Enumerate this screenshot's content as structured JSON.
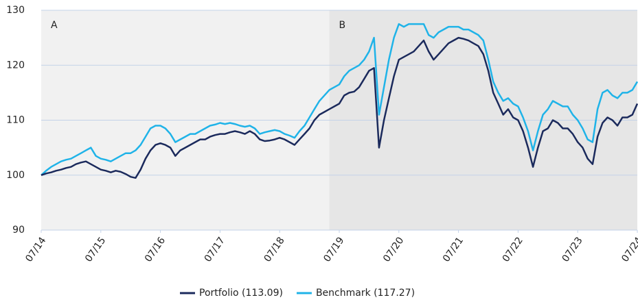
{
  "chart_data": {
    "type": "line",
    "x": [
      "07/14",
      "08/14",
      "09/14",
      "10/14",
      "11/14",
      "12/14",
      "01/15",
      "02/15",
      "03/15",
      "04/15",
      "05/15",
      "06/15",
      "07/15",
      "08/15",
      "09/15",
      "10/15",
      "11/15",
      "12/15",
      "01/16",
      "02/16",
      "03/16",
      "04/16",
      "05/16",
      "06/16",
      "07/16",
      "08/16",
      "09/16",
      "10/16",
      "11/16",
      "12/16",
      "01/17",
      "02/17",
      "03/17",
      "04/17",
      "05/17",
      "06/17",
      "07/17",
      "08/17",
      "09/17",
      "10/17",
      "11/17",
      "12/17",
      "01/18",
      "02/18",
      "03/18",
      "04/18",
      "05/18",
      "06/18",
      "07/18",
      "08/18",
      "09/18",
      "10/18",
      "11/18",
      "12/18",
      "01/19",
      "02/19",
      "03/19",
      "04/19",
      "05/19",
      "06/19",
      "07/19",
      "08/19",
      "09/19",
      "10/19",
      "11/19",
      "12/19",
      "01/20",
      "02/20",
      "03/20",
      "04/20",
      "05/20",
      "06/20",
      "07/20",
      "08/20",
      "09/20",
      "10/20",
      "11/20",
      "12/20",
      "01/21",
      "02/21",
      "03/21",
      "04/21",
      "05/21",
      "06/21",
      "07/21",
      "08/21",
      "09/21",
      "10/21",
      "11/21",
      "12/21",
      "01/22",
      "02/22",
      "03/22",
      "04/22",
      "05/22",
      "06/22",
      "07/22",
      "08/22",
      "09/22",
      "10/22",
      "11/22",
      "12/22",
      "01/23",
      "02/23",
      "03/23",
      "04/23",
      "05/23",
      "06/23",
      "07/23",
      "08/23",
      "09/23",
      "10/23",
      "11/23",
      "12/23",
      "01/24",
      "02/24",
      "03/24",
      "04/24",
      "05/24",
      "06/24",
      "07/24"
    ],
    "series": [
      {
        "name": "Portfolio (113.09)",
        "color": "#1b2a5c",
        "values": [
          100,
          100.3,
          100.5,
          100.8,
          101,
          101.3,
          101.5,
          102,
          102.3,
          102.5,
          102,
          101.5,
          101,
          100.8,
          100.5,
          100.8,
          100.6,
          100.2,
          99.7,
          99.5,
          101,
          103,
          104.5,
          105.5,
          105.8,
          105.5,
          105,
          103.5,
          104.5,
          105,
          105.5,
          106,
          106.5,
          106.5,
          107,
          107.3,
          107.5,
          107.5,
          107.8,
          108,
          107.8,
          107.5,
          108,
          107.5,
          106.5,
          106.2,
          106.3,
          106.5,
          106.8,
          106.5,
          106,
          105.5,
          106.5,
          107.5,
          108.5,
          110,
          111,
          111.5,
          112,
          112.5,
          113,
          114.5,
          115,
          115.2,
          116,
          117.5,
          119,
          119.5,
          105,
          110,
          114,
          118,
          121,
          121.5,
          122,
          122.5,
          123.5,
          124.5,
          122.5,
          121,
          122,
          123,
          124,
          124.5,
          125,
          124.8,
          124.5,
          124,
          123.5,
          122,
          119,
          115,
          113,
          111,
          112,
          110.5,
          110,
          108,
          105,
          101.5,
          105,
          108,
          108.5,
          110,
          109.5,
          108.5,
          108.5,
          107.5,
          106,
          105,
          103,
          102,
          107,
          109.5,
          110.5,
          110,
          109,
          110.5,
          110.5,
          111,
          113
        ]
      },
      {
        "name": "Benchmark (117.27)",
        "color": "#1fb3e8",
        "values": [
          100,
          100.8,
          101.5,
          102,
          102.5,
          102.8,
          103,
          103.5,
          104,
          104.5,
          105,
          103.5,
          103,
          102.8,
          102.5,
          103,
          103.5,
          104,
          104,
          104.5,
          105.5,
          107,
          108.5,
          109,
          109,
          108.5,
          107.5,
          106,
          106.5,
          107,
          107.5,
          107.5,
          108,
          108.5,
          109,
          109.2,
          109.5,
          109.3,
          109.5,
          109.3,
          109,
          108.8,
          109,
          108.5,
          107.5,
          107.8,
          108,
          108.2,
          108,
          107.5,
          107.2,
          106.8,
          108,
          109,
          110.5,
          112,
          113.5,
          114.5,
          115.5,
          116,
          116.5,
          118,
          119,
          119.5,
          120,
          121,
          122.5,
          125,
          111,
          116,
          121,
          125,
          127.5,
          127,
          127.5,
          127.5,
          127.5,
          127.5,
          125.5,
          125,
          126,
          126.5,
          127,
          127,
          127,
          126.5,
          126.5,
          126,
          125.5,
          124.5,
          121,
          117,
          115,
          113.5,
          114,
          113,
          112.5,
          110.5,
          108,
          104.5,
          108,
          111,
          112,
          113.5,
          113,
          112.5,
          112.5,
          111,
          110,
          108.5,
          106.5,
          106,
          112,
          115,
          115.5,
          114.5,
          114,
          115,
          115,
          115.5,
          117
        ]
      }
    ],
    "regions": [
      {
        "label": "A",
        "start": "07/14",
        "end": "05/19",
        "color": "#f1f1f1"
      },
      {
        "label": "B",
        "start": "05/19",
        "end": "07/24",
        "color": "#e6e6e6"
      }
    ],
    "xlim": [
      "07/14",
      "07/24"
    ],
    "xticks": [
      "07/14",
      "07/15",
      "07/16",
      "07/17",
      "07/18",
      "07/19",
      "07/20",
      "07/21",
      "07/22",
      "07/23",
      "07/24"
    ],
    "ylim": [
      90,
      130
    ],
    "yticks": [
      90,
      100,
      110,
      120,
      130
    ],
    "grid": true
  }
}
